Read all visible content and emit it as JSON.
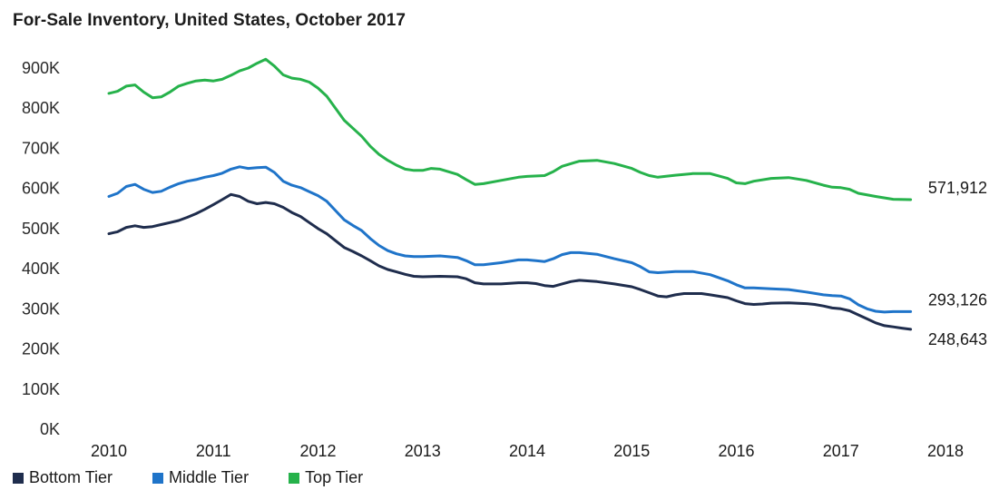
{
  "chart_data": {
    "type": "line",
    "title": "For-Sale Inventory, United States, October 2017",
    "xlabel": "",
    "ylabel": "",
    "xlim": [
      2010,
      2018
    ],
    "ylim": [
      0,
      900000
    ],
    "y_ticks": [
      0,
      100000,
      200000,
      300000,
      400000,
      500000,
      600000,
      700000,
      800000,
      900000
    ],
    "y_tick_labels": [
      "0K",
      "100K",
      "200K",
      "300K",
      "400K",
      "500K",
      "600K",
      "700K",
      "800K",
      "900K"
    ],
    "x_ticks": [
      2010,
      2011,
      2012,
      2013,
      2014,
      2015,
      2016,
      2017,
      2018
    ],
    "x_tick_labels": [
      "2010",
      "2011",
      "2012",
      "2013",
      "2014",
      "2015",
      "2016",
      "2017",
      "2018"
    ],
    "grid": false,
    "legend_position": "bottom-left",
    "series": [
      {
        "name": "Bottom Tier",
        "color": "#1f2d4d",
        "end_label": "248,643",
        "points": [
          [
            2010.0,
            487000
          ],
          [
            2010.083,
            492000
          ],
          [
            2010.167,
            503000
          ],
          [
            2010.25,
            507000
          ],
          [
            2010.333,
            503000
          ],
          [
            2010.417,
            505000
          ],
          [
            2010.5,
            510000
          ],
          [
            2010.583,
            515000
          ],
          [
            2010.667,
            520000
          ],
          [
            2010.75,
            528000
          ],
          [
            2010.833,
            537000
          ],
          [
            2010.917,
            548000
          ],
          [
            2011.0,
            560000
          ],
          [
            2011.083,
            572000
          ],
          [
            2011.167,
            585000
          ],
          [
            2011.25,
            580000
          ],
          [
            2011.333,
            568000
          ],
          [
            2011.417,
            562000
          ],
          [
            2011.5,
            565000
          ],
          [
            2011.583,
            562000
          ],
          [
            2011.667,
            553000
          ],
          [
            2011.75,
            540000
          ],
          [
            2011.833,
            530000
          ],
          [
            2011.917,
            515000
          ],
          [
            2012.0,
            500000
          ],
          [
            2012.083,
            487000
          ],
          [
            2012.167,
            470000
          ],
          [
            2012.25,
            453000
          ],
          [
            2012.333,
            443000
          ],
          [
            2012.417,
            432000
          ],
          [
            2012.5,
            420000
          ],
          [
            2012.583,
            407000
          ],
          [
            2012.667,
            398000
          ],
          [
            2012.75,
            392000
          ],
          [
            2012.833,
            386000
          ],
          [
            2012.917,
            381000
          ],
          [
            2013.0,
            380000
          ],
          [
            2013.167,
            381000
          ],
          [
            2013.333,
            380000
          ],
          [
            2013.417,
            375000
          ],
          [
            2013.5,
            365000
          ],
          [
            2013.583,
            362000
          ],
          [
            2013.75,
            362000
          ],
          [
            2013.917,
            365000
          ],
          [
            2014.0,
            365000
          ],
          [
            2014.083,
            363000
          ],
          [
            2014.167,
            358000
          ],
          [
            2014.25,
            356000
          ],
          [
            2014.333,
            362000
          ],
          [
            2014.417,
            368000
          ],
          [
            2014.5,
            371000
          ],
          [
            2014.667,
            368000
          ],
          [
            2014.833,
            362000
          ],
          [
            2015.0,
            355000
          ],
          [
            2015.083,
            348000
          ],
          [
            2015.167,
            340000
          ],
          [
            2015.25,
            332000
          ],
          [
            2015.333,
            330000
          ],
          [
            2015.417,
            335000
          ],
          [
            2015.5,
            338000
          ],
          [
            2015.667,
            338000
          ],
          [
            2015.75,
            335000
          ],
          [
            2015.917,
            328000
          ],
          [
            2016.0,
            320000
          ],
          [
            2016.083,
            313000
          ],
          [
            2016.167,
            311000
          ],
          [
            2016.25,
            312000
          ],
          [
            2016.333,
            314000
          ],
          [
            2016.5,
            315000
          ],
          [
            2016.667,
            313000
          ],
          [
            2016.75,
            311000
          ],
          [
            2016.833,
            307000
          ],
          [
            2016.917,
            302000
          ],
          [
            2017.0,
            300000
          ],
          [
            2017.083,
            295000
          ],
          [
            2017.167,
            285000
          ],
          [
            2017.25,
            275000
          ],
          [
            2017.333,
            265000
          ],
          [
            2017.417,
            258000
          ],
          [
            2017.5,
            255000
          ],
          [
            2017.583,
            252000
          ],
          [
            2017.667,
            249000
          ]
        ]
      },
      {
        "name": "Middle Tier",
        "color": "#1f74c9",
        "end_label": "293,126",
        "points": [
          [
            2010.0,
            580000
          ],
          [
            2010.083,
            588000
          ],
          [
            2010.167,
            605000
          ],
          [
            2010.25,
            610000
          ],
          [
            2010.333,
            598000
          ],
          [
            2010.417,
            590000
          ],
          [
            2010.5,
            593000
          ],
          [
            2010.583,
            603000
          ],
          [
            2010.667,
            612000
          ],
          [
            2010.75,
            618000
          ],
          [
            2010.833,
            622000
          ],
          [
            2010.917,
            628000
          ],
          [
            2011.0,
            632000
          ],
          [
            2011.083,
            638000
          ],
          [
            2011.167,
            648000
          ],
          [
            2011.25,
            654000
          ],
          [
            2011.333,
            650000
          ],
          [
            2011.417,
            652000
          ],
          [
            2011.5,
            653000
          ],
          [
            2011.583,
            640000
          ],
          [
            2011.667,
            618000
          ],
          [
            2011.75,
            608000
          ],
          [
            2011.833,
            602000
          ],
          [
            2011.917,
            592000
          ],
          [
            2012.0,
            582000
          ],
          [
            2012.083,
            568000
          ],
          [
            2012.167,
            545000
          ],
          [
            2012.25,
            522000
          ],
          [
            2012.333,
            508000
          ],
          [
            2012.417,
            495000
          ],
          [
            2012.5,
            475000
          ],
          [
            2012.583,
            458000
          ],
          [
            2012.667,
            445000
          ],
          [
            2012.75,
            437000
          ],
          [
            2012.833,
            432000
          ],
          [
            2012.917,
            430000
          ],
          [
            2013.0,
            430000
          ],
          [
            2013.167,
            432000
          ],
          [
            2013.333,
            428000
          ],
          [
            2013.417,
            420000
          ],
          [
            2013.5,
            410000
          ],
          [
            2013.583,
            410000
          ],
          [
            2013.75,
            415000
          ],
          [
            2013.917,
            422000
          ],
          [
            2014.0,
            422000
          ],
          [
            2014.083,
            420000
          ],
          [
            2014.167,
            418000
          ],
          [
            2014.25,
            425000
          ],
          [
            2014.333,
            435000
          ],
          [
            2014.417,
            440000
          ],
          [
            2014.5,
            440000
          ],
          [
            2014.667,
            436000
          ],
          [
            2014.833,
            425000
          ],
          [
            2015.0,
            415000
          ],
          [
            2015.083,
            405000
          ],
          [
            2015.167,
            392000
          ],
          [
            2015.25,
            390000
          ],
          [
            2015.417,
            393000
          ],
          [
            2015.583,
            393000
          ],
          [
            2015.75,
            385000
          ],
          [
            2015.917,
            370000
          ],
          [
            2016.0,
            360000
          ],
          [
            2016.083,
            352000
          ],
          [
            2016.167,
            352000
          ],
          [
            2016.333,
            350000
          ],
          [
            2016.5,
            348000
          ],
          [
            2016.667,
            342000
          ],
          [
            2016.833,
            335000
          ],
          [
            2016.917,
            333000
          ],
          [
            2017.0,
            332000
          ],
          [
            2017.083,
            325000
          ],
          [
            2017.167,
            310000
          ],
          [
            2017.25,
            300000
          ],
          [
            2017.333,
            294000
          ],
          [
            2017.417,
            292000
          ],
          [
            2017.5,
            293000
          ],
          [
            2017.667,
            293000
          ]
        ]
      },
      {
        "name": "Top Tier",
        "color": "#26b24b",
        "end_label": "571,912",
        "points": [
          [
            2010.0,
            837000
          ],
          [
            2010.083,
            842000
          ],
          [
            2010.167,
            855000
          ],
          [
            2010.25,
            858000
          ],
          [
            2010.333,
            840000
          ],
          [
            2010.417,
            826000
          ],
          [
            2010.5,
            828000
          ],
          [
            2010.583,
            840000
          ],
          [
            2010.667,
            855000
          ],
          [
            2010.75,
            862000
          ],
          [
            2010.833,
            868000
          ],
          [
            2010.917,
            870000
          ],
          [
            2011.0,
            868000
          ],
          [
            2011.083,
            872000
          ],
          [
            2011.167,
            882000
          ],
          [
            2011.25,
            893000
          ],
          [
            2011.333,
            900000
          ],
          [
            2011.417,
            912000
          ],
          [
            2011.5,
            922000
          ],
          [
            2011.583,
            905000
          ],
          [
            2011.667,
            883000
          ],
          [
            2011.75,
            875000
          ],
          [
            2011.833,
            872000
          ],
          [
            2011.917,
            865000
          ],
          [
            2012.0,
            850000
          ],
          [
            2012.083,
            830000
          ],
          [
            2012.167,
            800000
          ],
          [
            2012.25,
            770000
          ],
          [
            2012.333,
            750000
          ],
          [
            2012.417,
            730000
          ],
          [
            2012.5,
            705000
          ],
          [
            2012.583,
            685000
          ],
          [
            2012.667,
            670000
          ],
          [
            2012.75,
            658000
          ],
          [
            2012.833,
            648000
          ],
          [
            2012.917,
            645000
          ],
          [
            2013.0,
            645000
          ],
          [
            2013.083,
            650000
          ],
          [
            2013.167,
            648000
          ],
          [
            2013.333,
            635000
          ],
          [
            2013.417,
            622000
          ],
          [
            2013.5,
            610000
          ],
          [
            2013.583,
            612000
          ],
          [
            2013.75,
            620000
          ],
          [
            2013.917,
            628000
          ],
          [
            2014.0,
            630000
          ],
          [
            2014.167,
            632000
          ],
          [
            2014.25,
            642000
          ],
          [
            2014.333,
            655000
          ],
          [
            2014.5,
            668000
          ],
          [
            2014.667,
            670000
          ],
          [
            2014.833,
            662000
          ],
          [
            2015.0,
            650000
          ],
          [
            2015.083,
            640000
          ],
          [
            2015.167,
            632000
          ],
          [
            2015.25,
            628000
          ],
          [
            2015.417,
            633000
          ],
          [
            2015.583,
            637000
          ],
          [
            2015.75,
            637000
          ],
          [
            2015.917,
            625000
          ],
          [
            2016.0,
            614000
          ],
          [
            2016.083,
            612000
          ],
          [
            2016.167,
            618000
          ],
          [
            2016.333,
            625000
          ],
          [
            2016.5,
            627000
          ],
          [
            2016.667,
            620000
          ],
          [
            2016.833,
            608000
          ],
          [
            2016.917,
            603000
          ],
          [
            2017.0,
            602000
          ],
          [
            2017.083,
            598000
          ],
          [
            2017.167,
            588000
          ],
          [
            2017.333,
            580000
          ],
          [
            2017.5,
            573000
          ],
          [
            2017.667,
            572000
          ]
        ]
      }
    ]
  }
}
